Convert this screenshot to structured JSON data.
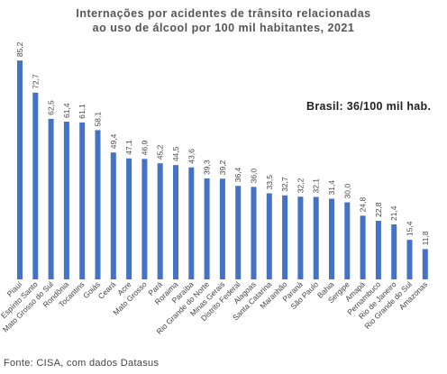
{
  "chart_data": {
    "type": "bar",
    "title_line1": "Internações por acidentes de trânsito relacionadas",
    "title_line2": "ao uso de álcool por 100 mil habitantes, 2021",
    "annotation": "Brasil: 36/100 mil hab.",
    "source": "Fonte: CISA, com dados Datasus",
    "bar_color": "#4472C4",
    "categories": [
      "Piauí",
      "Espírito Santo",
      "Mato Grosso do Sul",
      "Rondônia",
      "Tocantins",
      "Goiás",
      "Ceará",
      "Acre",
      "Mato Grosso",
      "Pará",
      "Roraima",
      "Paraíba",
      "Rio Grande do Norte",
      "Minas Gerais",
      "Distrito Federal",
      "Alagoas",
      "Santa Catarina",
      "Maranhão",
      "Paraná",
      "São Paulo",
      "Bahia",
      "Sergipe",
      "Amapá",
      "Pernambuco",
      "Rio de Janeiro",
      "Rio Grande do Sul",
      "Amazonas"
    ],
    "value_labels": [
      "85,2",
      "72,7",
      "62,5",
      "61,4",
      "61,1",
      "58,1",
      "49,4",
      "47,1",
      "46,9",
      "45,2",
      "44,5",
      "43,6",
      "39,3",
      "39,2",
      "36,4",
      "36,0",
      "33,5",
      "32,7",
      "32,2",
      "32,1",
      "31,4",
      "30,0",
      "24,8",
      "22,8",
      "21,4",
      "15,4",
      "11,8"
    ],
    "values": [
      85.2,
      72.7,
      62.5,
      61.4,
      61.1,
      58.1,
      49.4,
      47.1,
      46.9,
      45.2,
      44.5,
      43.6,
      39.3,
      39.2,
      36.4,
      36.0,
      33.5,
      32.7,
      32.2,
      32.1,
      31.4,
      30.0,
      24.8,
      22.8,
      21.4,
      15.4,
      11.8
    ]
  }
}
